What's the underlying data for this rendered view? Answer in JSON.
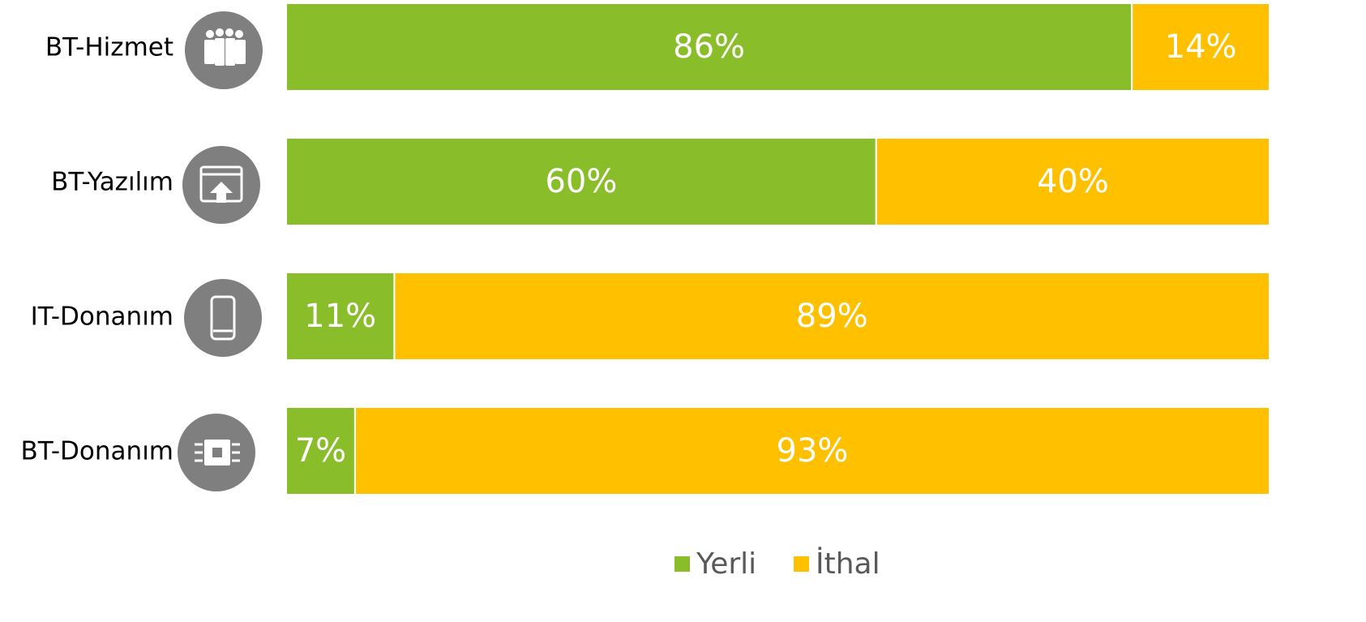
{
  "chart_data": {
    "type": "stacked-barh",
    "categories": [
      "BT-Hizmet",
      "BT-Yazılım",
      "IT-Donanım",
      "BT-Donanım"
    ],
    "series": [
      {
        "name": "Yerli",
        "color": "#8abd2a",
        "values": [
          86,
          60,
          11,
          7
        ],
        "value_labels": [
          "86%",
          "60%",
          "11%",
          "7%"
        ]
      },
      {
        "name": "İthal",
        "color": "#ffc000",
        "values": [
          14,
          40,
          89,
          93
        ],
        "value_labels": [
          "14%",
          "40%",
          "89%",
          "93%"
        ]
      }
    ],
    "xlim": [
      0,
      100
    ],
    "legend": "bottom"
  }
}
